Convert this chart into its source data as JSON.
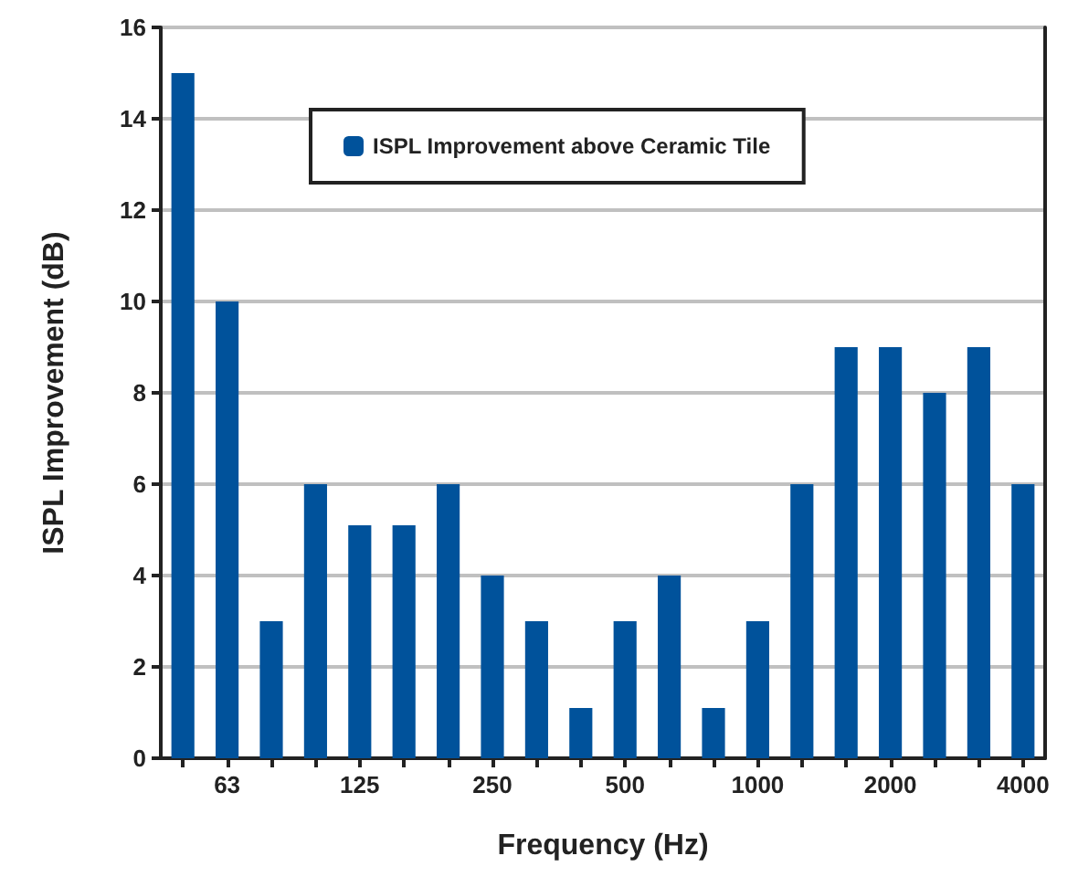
{
  "chart_data": {
    "type": "bar",
    "xlabel": "Frequency (Hz)",
    "ylabel": "ISPL Improvement (dB)",
    "categories": [
      null,
      "63",
      null,
      null,
      "125",
      null,
      null,
      "250",
      null,
      null,
      "500",
      null,
      null,
      "1000",
      null,
      null,
      "2000",
      null,
      null,
      "4000"
    ],
    "series": [
      {
        "name": "ISPL Improvement above Ceramic Tile",
        "color": "#00529b",
        "values": [
          15.0,
          10.0,
          3.0,
          6.0,
          5.1,
          5.1,
          6.0,
          4.0,
          3.0,
          1.1,
          3.0,
          4.0,
          1.1,
          3.0,
          6.0,
          9.0,
          9.0,
          8.0,
          9.0,
          6.0
        ]
      }
    ],
    "ylim": [
      0,
      16
    ],
    "yticks": [
      0,
      2,
      4,
      6,
      8,
      10,
      12,
      14,
      16
    ],
    "grid": "y",
    "legend": "top"
  }
}
